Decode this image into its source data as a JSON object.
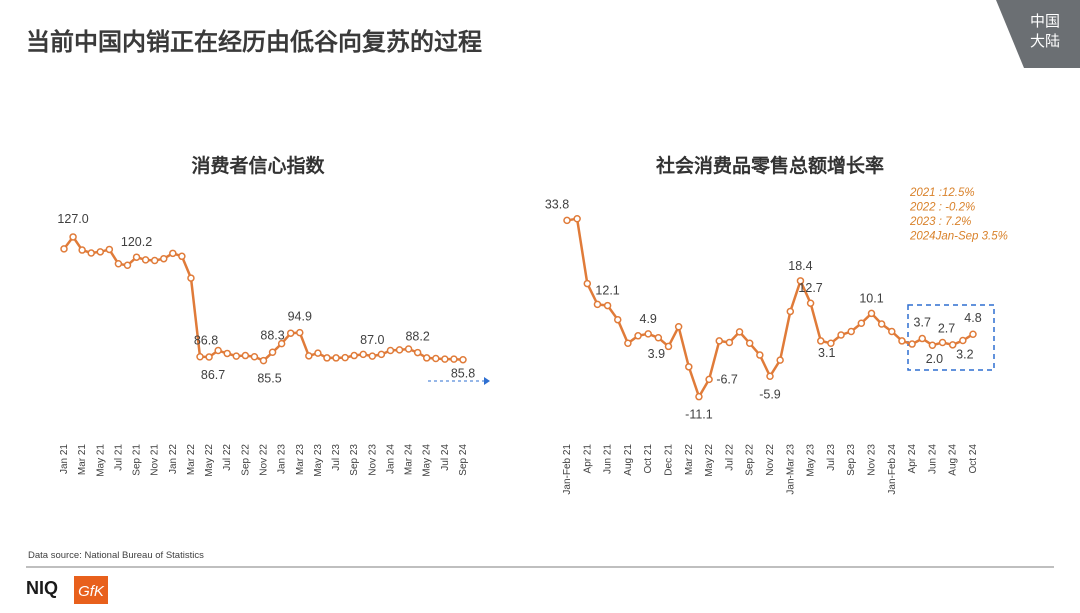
{
  "header": {
    "title": "当前中国内销正在经历由低谷向复苏的过程",
    "tag": [
      "中国",
      "大陆"
    ]
  },
  "source": "Data source: National Bureau of Statistics",
  "logos": [
    "NIQ",
    "GfK"
  ],
  "chart_data": [
    {
      "type": "line",
      "title": "消费者信心指数",
      "color": "#e07b39",
      "categories": [
        "Jan 21",
        null,
        "Mar 21",
        null,
        "May 21",
        null,
        "Jul 21",
        null,
        "Sep 21",
        null,
        "Nov 21",
        null,
        "Jan 22",
        null,
        "Mar 22",
        null,
        "May 22",
        null,
        "Jul 22",
        null,
        "Sep 22",
        null,
        "Nov 22",
        null,
        "Jan 23",
        null,
        "Mar 23",
        null,
        "May 23",
        null,
        "Jul 23",
        null,
        "Sep 23",
        null,
        "Nov 23",
        null,
        "Jan 24",
        null,
        "Mar 24",
        null,
        "May 24",
        null,
        "Jul 24",
        null,
        "Sep 24"
      ],
      "values": [
        123.0,
        127.0,
        122.6,
        121.6,
        122.0,
        122.8,
        118.0,
        117.5,
        120.2,
        119.3,
        119.1,
        119.7,
        121.5,
        120.5,
        113.2,
        86.8,
        86.7,
        88.9,
        87.9,
        87.0,
        87.2,
        86.8,
        85.5,
        88.3,
        91.2,
        94.7,
        94.9,
        87.1,
        88.0,
        86.4,
        86.4,
        86.5,
        87.2,
        87.6,
        87.0,
        87.6,
        88.9,
        89.1,
        89.4,
        88.2,
        86.4,
        86.2,
        86.0,
        86.0,
        85.8
      ],
      "value_labels": [
        null,
        "127.0",
        null,
        null,
        null,
        null,
        null,
        null,
        "120.2",
        null,
        null,
        null,
        null,
        null,
        null,
        "86.8",
        "86.7",
        null,
        null,
        null,
        null,
        null,
        "85.5",
        "88.3",
        null,
        null,
        "94.9",
        null,
        null,
        null,
        null,
        null,
        null,
        null,
        "87.0",
        null,
        null,
        null,
        null,
        "88.2",
        null,
        null,
        null,
        null,
        "85.8"
      ],
      "ylim": [
        80,
        130
      ]
    },
    {
      "type": "line",
      "title": "社会消费品零售总额增长率",
      "color": "#e07b39",
      "categories": [
        "Jan-Feb 21",
        null,
        "Apr 21",
        null,
        "Jun 21",
        null,
        "Aug 21",
        null,
        "Oct 21",
        null,
        "Dec 21",
        null,
        "Mar 22",
        null,
        "May 22",
        null,
        "Jul 22",
        null,
        "Sep 22",
        null,
        "Nov 22",
        null,
        "Jan-Mar 23",
        null,
        "May 23",
        null,
        "Jul 23",
        null,
        "Sep 23",
        null,
        "Nov 23",
        null,
        "Jan-Feb 24",
        null,
        "Apr 24",
        null,
        "Jun 24",
        null,
        "Aug 24",
        null,
        "Oct 24"
      ],
      "values": [
        33.8,
        34.2,
        17.7,
        12.4,
        12.1,
        8.5,
        2.5,
        4.4,
        4.9,
        3.9,
        1.7,
        6.7,
        -3.5,
        -11.1,
        -6.7,
        3.1,
        2.7,
        5.4,
        2.5,
        -0.5,
        -5.9,
        -1.8,
        10.6,
        18.4,
        12.7,
        3.1,
        2.5,
        4.6,
        5.5,
        7.6,
        10.1,
        7.4,
        5.5,
        3.1,
        2.3,
        3.7,
        2.0,
        2.7,
        2.1,
        3.2,
        4.8
      ],
      "value_labels": [
        "33.8",
        null,
        null,
        null,
        "12.1",
        null,
        null,
        null,
        "4.9",
        "3.9",
        null,
        null,
        null,
        "-11.1",
        "-6.7",
        null,
        null,
        null,
        null,
        null,
        "-5.9",
        null,
        null,
        "18.4",
        "12.7",
        "3.1",
        null,
        null,
        null,
        null,
        "10.1",
        null,
        null,
        null,
        null,
        "3.7",
        "2.0",
        "2.7",
        null,
        "3.2",
        "4.8"
      ],
      "annotations": [
        "2021 :12.5%",
        "2022 : -0.2%",
        "2023 : 7.2%",
        "2024Jan-Sep 3.5%"
      ],
      "ylim": [
        -15,
        40
      ]
    }
  ]
}
